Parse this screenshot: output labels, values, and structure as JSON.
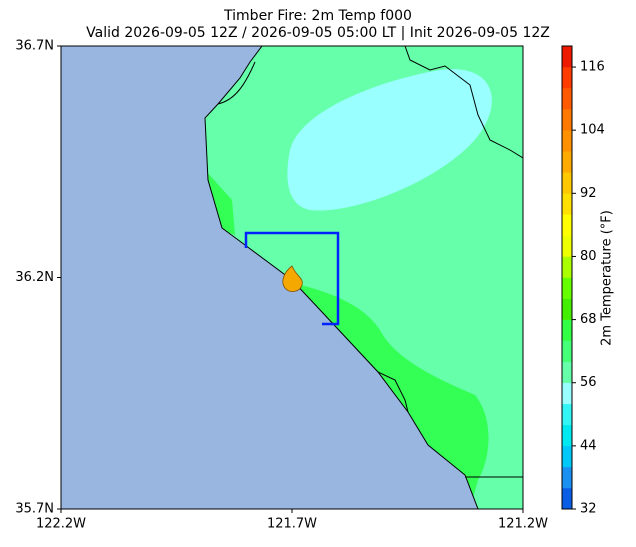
{
  "map": {
    "title": "Timber Fire: 2m Temp f000",
    "subtitle": "Valid 2026-09-05 12Z / 2026-09-05 05:00 LT | Init 2026-09-05 12Z",
    "lat_lim": [
      35.7,
      36.7
    ],
    "lon_lim": [
      -122.2,
      -121.2
    ],
    "lat_ticks": [
      {
        "value": 36.7,
        "label": "36.7N"
      },
      {
        "value": 36.2,
        "label": "36.2N"
      },
      {
        "value": 35.7,
        "label": "35.7N"
      }
    ],
    "lon_ticks": [
      {
        "value": -122.2,
        "label": "122.2W"
      },
      {
        "value": -121.7,
        "label": "121.7W"
      },
      {
        "value": -121.2,
        "label": "121.2W"
      }
    ],
    "colorbar": {
      "label": "2m Temperature (°F)",
      "levels": [
        32,
        36,
        40,
        44,
        48,
        52,
        56,
        60,
        64,
        68,
        72,
        76,
        80,
        84,
        88,
        92,
        96,
        100,
        104,
        108,
        112,
        116,
        120
      ],
      "colors": [
        "#0a5ee6",
        "#1a90f0",
        "#00c8f8",
        "#00e8f0",
        "#33f5f5",
        "#99ffff",
        "#66ffaa",
        "#44ff77",
        "#33ff44",
        "#44ee00",
        "#66ff00",
        "#aaff00",
        "#eeff00",
        "#ffff00",
        "#ffe000",
        "#ffc800",
        "#ffaa00",
        "#ff9000",
        "#ff7800",
        "#ff5a00",
        "#ff3c00",
        "#ee1a00"
      ],
      "ticks": [
        32,
        44,
        56,
        68,
        80,
        92,
        104,
        116
      ]
    }
  }
}
